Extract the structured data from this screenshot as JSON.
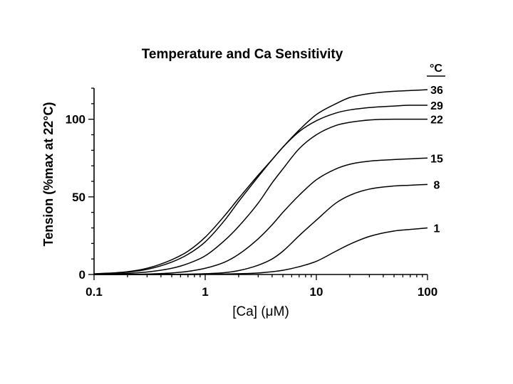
{
  "chart_data": {
    "type": "line",
    "title": "Temperature and Ca Sensitivity",
    "xlabel": "[Ca] (μM)",
    "ylabel": "Tension (%max at 22°C)",
    "x_scale": "log",
    "xlim": [
      0.1,
      100
    ],
    "ylim": [
      0,
      120
    ],
    "x_ticks": [
      "0.1",
      "1",
      "10",
      "100"
    ],
    "y_ticks": [
      "0",
      "50",
      "100"
    ],
    "legend_title": "°C",
    "legend_placement": "right",
    "grid": false,
    "x": [
      0.1,
      0.2,
      0.3,
      0.5,
      0.7,
      1,
      1.5,
      2,
      3,
      4,
      5,
      7,
      10,
      15,
      20,
      30,
      50,
      70,
      100
    ],
    "series": [
      {
        "name": "36",
        "values": [
          0.4,
          1.8,
          4,
          9.5,
          15,
          24,
          38,
          49,
          64,
          74,
          82,
          93,
          103,
          110,
          114,
          116.5,
          118,
          118.5,
          119
        ]
      },
      {
        "name": "29",
        "values": [
          0.3,
          1.5,
          3.3,
          8,
          13,
          21,
          35,
          47,
          63,
          74,
          82,
          92,
          99,
          104,
          106,
          107.5,
          108.5,
          109,
          109
        ]
      },
      {
        "name": "22",
        "values": [
          0.1,
          0.7,
          1.6,
          4,
          7,
          12,
          22,
          31,
          46,
          59,
          68,
          81,
          90,
          96,
          98,
          99.5,
          100,
          100,
          100
        ]
      },
      {
        "name": "15",
        "values": [
          0,
          0.1,
          0.3,
          1,
          2,
          4,
          8,
          13,
          23,
          32,
          40,
          51,
          61,
          68,
          71,
          73,
          74,
          74.5,
          75
        ]
      },
      {
        "name": "8",
        "values": [
          0,
          0,
          0,
          0.1,
          0.2,
          0.5,
          1.2,
          2.5,
          6,
          10,
          15,
          25,
          35,
          46,
          51,
          55,
          57,
          57.5,
          58
        ]
      },
      {
        "name": "1",
        "values": [
          0,
          0,
          0,
          0,
          0,
          0.1,
          0.3,
          0.5,
          1,
          1.8,
          2.7,
          5,
          8.5,
          15,
          19.5,
          24.5,
          28,
          29,
          30
        ]
      }
    ]
  }
}
